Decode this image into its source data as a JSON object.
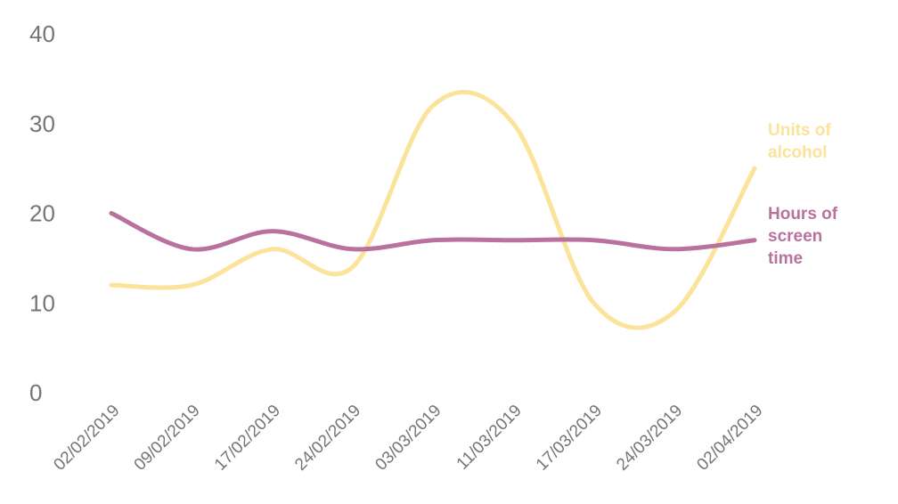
{
  "chart_data": {
    "type": "line",
    "title": "",
    "xlabel": "",
    "ylabel": "",
    "ylim": [
      0,
      40
    ],
    "yticks": [
      "0",
      "10",
      "20",
      "30",
      "40"
    ],
    "categories": [
      "02/02/2019",
      "09/02/2019",
      "17/02/2019",
      "24/02/2019",
      "03/03/2019",
      "11/03/2019",
      "17/03/2019",
      "24/03/2019",
      "02/04/2019"
    ],
    "series": [
      {
        "name": "Units of alcohol",
        "label_lines": [
          "Units of",
          "alcohol"
        ],
        "color": "#fbe39a",
        "values": [
          12,
          12,
          16,
          14,
          32,
          30,
          10,
          9,
          25
        ]
      },
      {
        "name": "Hours of screen time",
        "label_lines": [
          "Hours of",
          "screen",
          "time"
        ],
        "color": "#b9729e",
        "values": [
          20,
          16,
          18,
          16,
          17,
          17,
          17,
          16,
          17
        ]
      }
    ],
    "grid": false,
    "legend": "inline-right"
  }
}
